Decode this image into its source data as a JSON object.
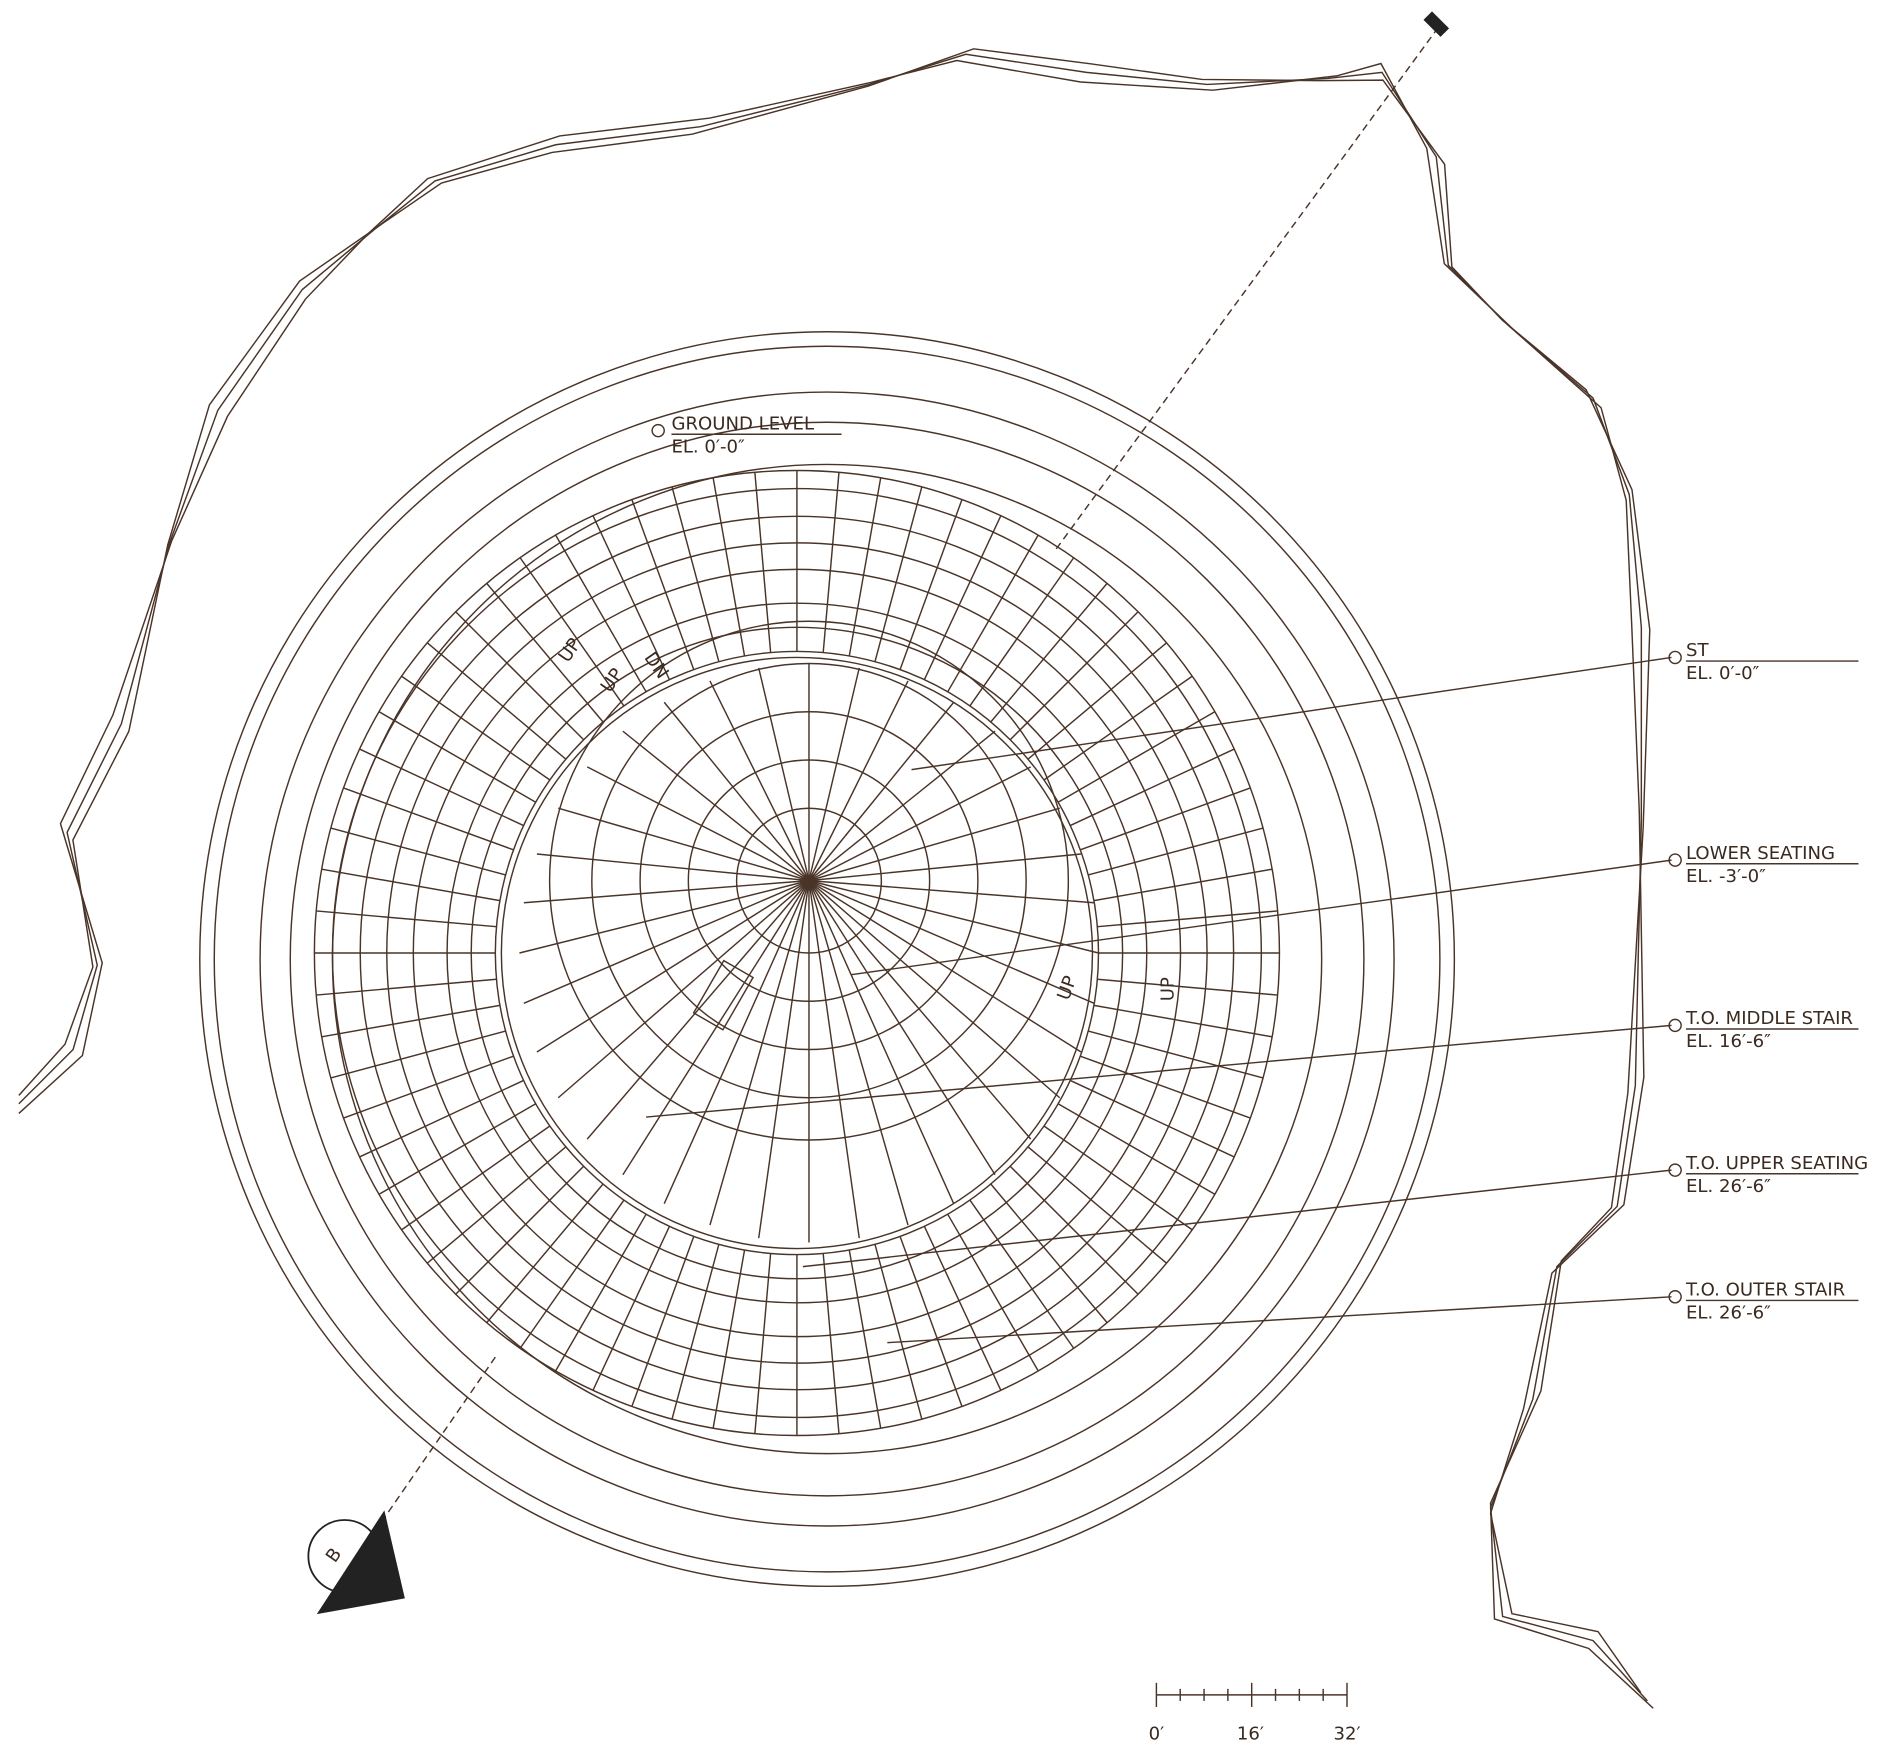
{
  "labels": [
    {
      "name": "ST",
      "elevation": "EL. 0′-0″"
    },
    {
      "name": "LOWER SEATING",
      "elevation": "EL. -3′-0″"
    },
    {
      "name": "T.O. MIDDLE STAIR",
      "elevation": "EL. 16′-6″"
    },
    {
      "name": "T.O. UPPER SEATING",
      "elevation": "EL. 26′-6″"
    },
    {
      "name": "T.O. OUTER STAIR",
      "elevation": "EL. 26′-6″"
    }
  ],
  "ground": {
    "name": "GROUND LEVEL",
    "elevation": "EL. 0′-0″"
  },
  "stair_marks": [
    "UP",
    "UP",
    "DN",
    "UP",
    "UP"
  ],
  "section_marker": "B",
  "scale_bar": [
    "0′",
    "16′",
    "32′"
  ]
}
